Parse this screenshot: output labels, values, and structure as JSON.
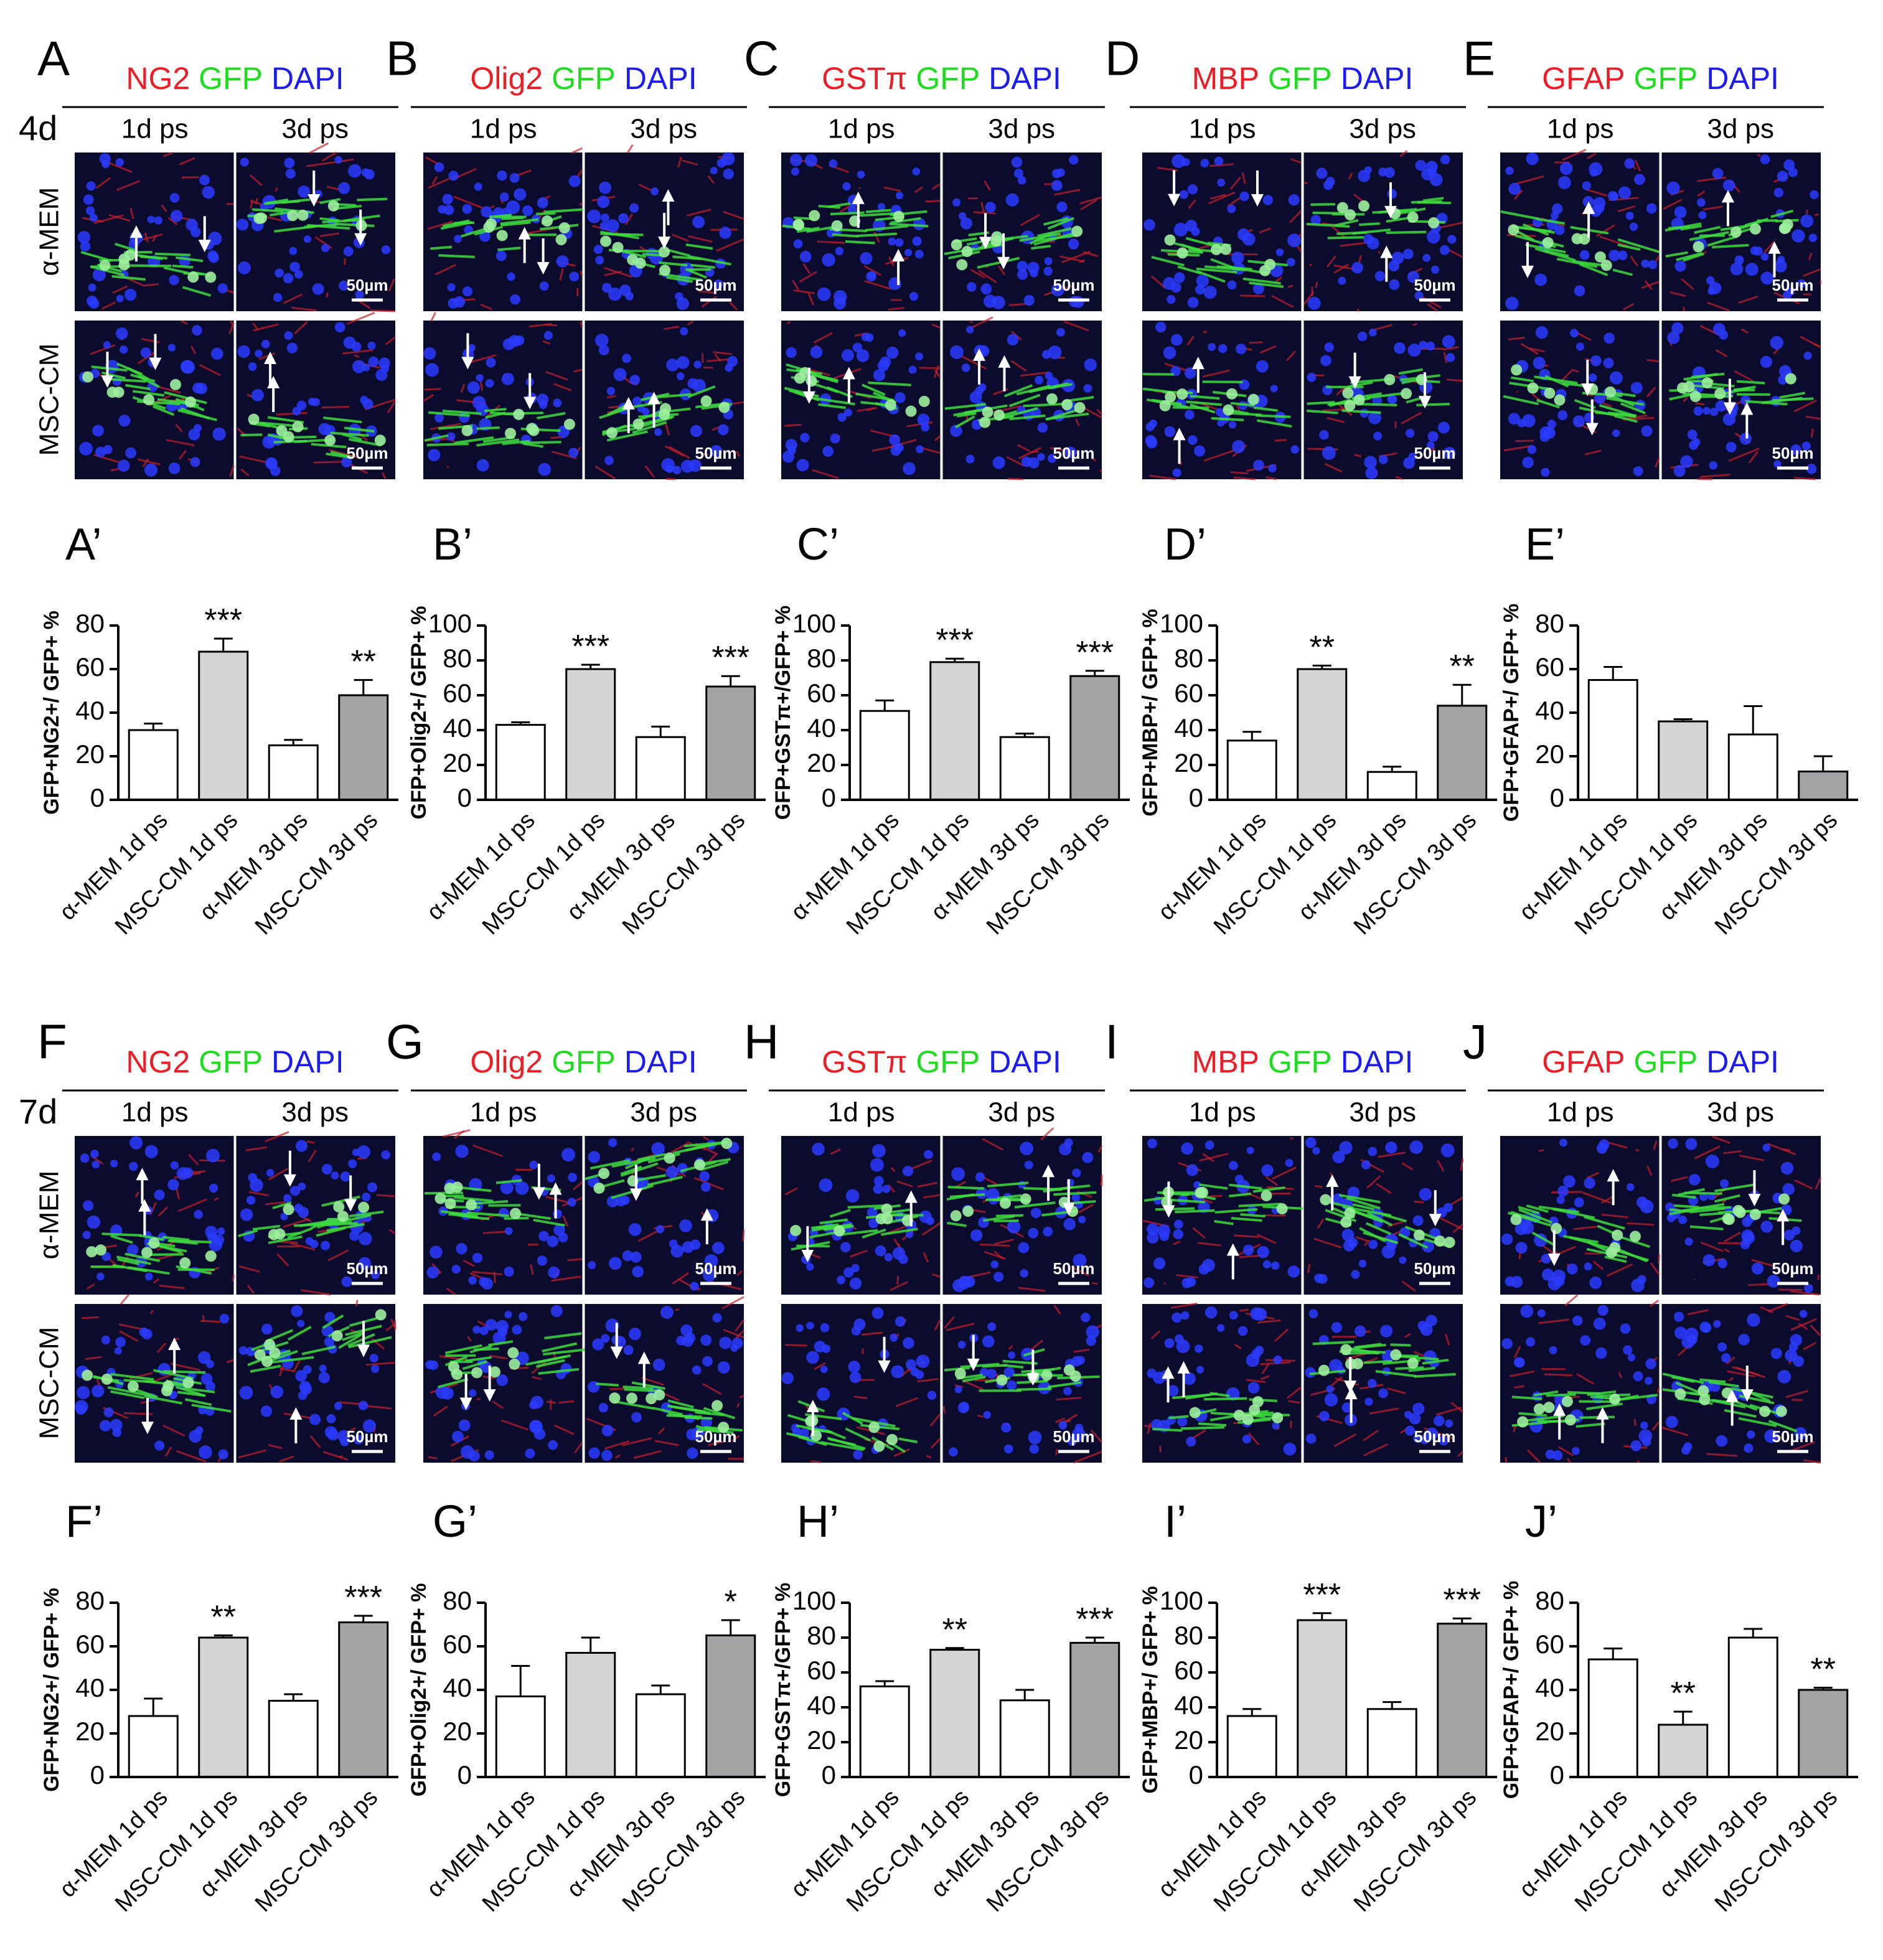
{
  "time_points": [
    "4d",
    "7d"
  ],
  "row_labels": [
    "α-MEM",
    "MSC-CM"
  ],
  "column_labels": [
    "1d ps",
    "3d ps"
  ],
  "scale_bar": "50µm",
  "image_panels": [
    {
      "letter": "A",
      "stains": [
        {
          "name": "NG2",
          "color": "#ee1c24"
        },
        {
          "name": "GFP",
          "color": "#1edc1e"
        },
        {
          "name": "DAPI",
          "color": "#1c1cf0"
        }
      ]
    },
    {
      "letter": "B",
      "stains": [
        {
          "name": "Olig2",
          "color": "#ee1c24"
        },
        {
          "name": "GFP",
          "color": "#1edc1e"
        },
        {
          "name": "DAPI",
          "color": "#1c1cf0"
        }
      ]
    },
    {
      "letter": "C",
      "stains": [
        {
          "name": "GSTπ",
          "color": "#ee1c24"
        },
        {
          "name": "GFP",
          "color": "#1edc1e"
        },
        {
          "name": "DAPI",
          "color": "#1c1cf0"
        }
      ]
    },
    {
      "letter": "D",
      "stains": [
        {
          "name": "MBP",
          "color": "#ee1c24"
        },
        {
          "name": "GFP",
          "color": "#1edc1e"
        },
        {
          "name": "DAPI",
          "color": "#1c1cf0"
        }
      ]
    },
    {
      "letter": "E",
      "stains": [
        {
          "name": "GFAP",
          "color": "#ee1c24"
        },
        {
          "name": "GFP",
          "color": "#1edc1e"
        },
        {
          "name": "DAPI",
          "color": "#1c1cf0"
        }
      ]
    },
    {
      "letter": "F",
      "stains": [
        {
          "name": "NG2",
          "color": "#ee1c24"
        },
        {
          "name": "GFP",
          "color": "#1edc1e"
        },
        {
          "name": "DAPI",
          "color": "#1c1cf0"
        }
      ]
    },
    {
      "letter": "G",
      "stains": [
        {
          "name": "Olig2",
          "color": "#ee1c24"
        },
        {
          "name": "GFP",
          "color": "#1edc1e"
        },
        {
          "name": "DAPI",
          "color": "#1c1cf0"
        }
      ]
    },
    {
      "letter": "H",
      "stains": [
        {
          "name": "GSTπ",
          "color": "#ee1c24"
        },
        {
          "name": "GFP",
          "color": "#1edc1e"
        },
        {
          "name": "DAPI",
          "color": "#1c1cf0"
        }
      ]
    },
    {
      "letter": "I",
      "stains": [
        {
          "name": "MBP",
          "color": "#ee1c24"
        },
        {
          "name": "GFP",
          "color": "#1edc1e"
        },
        {
          "name": "DAPI",
          "color": "#1c1cf0"
        }
      ]
    },
    {
      "letter": "J",
      "stains": [
        {
          "name": "GFAP",
          "color": "#ee1c24"
        },
        {
          "name": "GFP",
          "color": "#1edc1e"
        },
        {
          "name": "DAPI",
          "color": "#1c1cf0"
        }
      ]
    }
  ],
  "chart_data": [
    {
      "type": "bar",
      "title": "A’",
      "y_label": "GFP+NG2+/ GFP+ %",
      "categories": [
        "α-MEM 1d ps",
        "MSC-CM 1d ps",
        "α-MEM 3d ps",
        "MSC-CM 3d ps"
      ],
      "values": [
        32,
        68,
        25,
        48
      ],
      "errors": [
        3,
        6,
        2.5,
        7
      ],
      "colors": [
        "#ffffff",
        "#d4d4d4",
        "#ffffff",
        "#a3a3a5"
      ],
      "ylim": [
        0,
        80
      ],
      "yticks": [
        0,
        20,
        40,
        60,
        80
      ],
      "annotations": [
        {
          "category": "MSC-CM 1d ps",
          "text": "***"
        },
        {
          "category": "MSC-CM 3d ps",
          "text": "**"
        }
      ]
    },
    {
      "type": "bar",
      "title": "B’",
      "y_label": "GFP+Olig2+/ GFP+ %",
      "categories": [
        "α-MEM 1d ps",
        "MSC-CM 1d ps",
        "α-MEM 3d ps",
        "MSC-CM 3d ps"
      ],
      "values": [
        43,
        75,
        36,
        65
      ],
      "errors": [
        1.5,
        2.5,
        6,
        6
      ],
      "colors": [
        "#ffffff",
        "#d4d4d4",
        "#ffffff",
        "#a3a3a5"
      ],
      "ylim": [
        0,
        100
      ],
      "yticks": [
        0,
        20,
        40,
        60,
        80,
        100
      ],
      "annotations": [
        {
          "category": "MSC-CM 1d ps",
          "text": "***"
        },
        {
          "category": "MSC-CM 3d ps",
          "text": "***"
        }
      ]
    },
    {
      "type": "bar",
      "title": "C’",
      "y_label": "GFP+GSTπ+/GFP+ %",
      "categories": [
        "α-MEM 1d ps",
        "MSC-CM 1d ps",
        "α-MEM 3d ps",
        "MSC-CM 3d ps"
      ],
      "values": [
        51,
        79,
        36,
        71
      ],
      "errors": [
        6,
        2,
        2,
        3
      ],
      "colors": [
        "#ffffff",
        "#d4d4d4",
        "#ffffff",
        "#a3a3a5"
      ],
      "ylim": [
        0,
        100
      ],
      "yticks": [
        0,
        20,
        40,
        60,
        80,
        100
      ],
      "annotations": [
        {
          "category": "MSC-CM 1d ps",
          "text": "***"
        },
        {
          "category": "MSC-CM 3d ps",
          "text": "***"
        }
      ]
    },
    {
      "type": "bar",
      "title": "D’",
      "y_label": "GFP+MBP+/ GFP+ %",
      "categories": [
        "α-MEM 1d ps",
        "MSC-CM 1d ps",
        "α-MEM 3d ps",
        "MSC-CM 3d ps"
      ],
      "values": [
        34,
        75,
        16,
        54
      ],
      "errors": [
        5,
        2,
        3,
        12
      ],
      "colors": [
        "#ffffff",
        "#d4d4d4",
        "#ffffff",
        "#a3a3a5"
      ],
      "ylim": [
        0,
        100
      ],
      "yticks": [
        0,
        20,
        40,
        60,
        80,
        100
      ],
      "annotations": [
        {
          "category": "MSC-CM 1d ps",
          "text": "**"
        },
        {
          "category": "MSC-CM 3d ps",
          "text": "**"
        }
      ]
    },
    {
      "type": "bar",
      "title": "E’",
      "y_label": "GFP+GFAP+/ GFP+ %",
      "categories": [
        "α-MEM 1d ps",
        "MSC-CM 1d ps",
        "α-MEM 3d ps",
        "MSC-CM 3d ps"
      ],
      "values": [
        55,
        36,
        30,
        13
      ],
      "errors": [
        6,
        1,
        13,
        7
      ],
      "colors": [
        "#ffffff",
        "#d4d4d4",
        "#ffffff",
        "#a3a3a5"
      ],
      "ylim": [
        0,
        80
      ],
      "yticks": [
        0,
        20,
        40,
        60,
        80
      ],
      "annotations": []
    },
    {
      "type": "bar",
      "title": "F’",
      "y_label": "GFP+NG2+/ GFP+ %",
      "categories": [
        "α-MEM 1d ps",
        "MSC-CM 1d ps",
        "α-MEM 3d ps",
        "MSC-CM 3d ps"
      ],
      "values": [
        28,
        64,
        35,
        71
      ],
      "errors": [
        8,
        1,
        3,
        3
      ],
      "colors": [
        "#ffffff",
        "#d4d4d4",
        "#ffffff",
        "#a3a3a5"
      ],
      "ylim": [
        0,
        80
      ],
      "yticks": [
        0,
        20,
        40,
        60,
        80
      ],
      "annotations": [
        {
          "category": "MSC-CM 1d ps",
          "text": "**"
        },
        {
          "category": "MSC-CM 3d ps",
          "text": "***"
        }
      ]
    },
    {
      "type": "bar",
      "title": "G’",
      "y_label": "GFP+Olig2+/ GFP+ %",
      "categories": [
        "α-MEM 1d ps",
        "MSC-CM 1d ps",
        "α-MEM 3d ps",
        "MSC-CM 3d ps"
      ],
      "values": [
        37,
        57,
        38,
        65
      ],
      "errors": [
        14,
        7,
        4,
        7
      ],
      "colors": [
        "#ffffff",
        "#d4d4d4",
        "#ffffff",
        "#a3a3a5"
      ],
      "ylim": [
        0,
        80
      ],
      "yticks": [
        0,
        20,
        40,
        60,
        80
      ],
      "annotations": [
        {
          "category": "MSC-CM 3d ps",
          "text": "*"
        }
      ]
    },
    {
      "type": "bar",
      "title": "H’",
      "y_label": "GFP+GSTπ+/GFP+ %",
      "categories": [
        "α-MEM 1d ps",
        "MSC-CM 1d ps",
        "α-MEM 3d ps",
        "MSC-CM 3d ps"
      ],
      "values": [
        52,
        73,
        44,
        77
      ],
      "errors": [
        3,
        1,
        6,
        3
      ],
      "colors": [
        "#ffffff",
        "#d4d4d4",
        "#ffffff",
        "#a3a3a5"
      ],
      "ylim": [
        0,
        100
      ],
      "yticks": [
        0,
        20,
        40,
        60,
        80,
        100
      ],
      "annotations": [
        {
          "category": "MSC-CM 1d ps",
          "text": "**"
        },
        {
          "category": "MSC-CM 3d ps",
          "text": "***"
        }
      ]
    },
    {
      "type": "bar",
      "title": "I’",
      "y_label": "GFP+MBP+/ GFP+ %",
      "categories": [
        "α-MEM 1d ps",
        "MSC-CM 1d ps",
        "α-MEM 3d ps",
        "MSC-CM 3d ps"
      ],
      "values": [
        35,
        90,
        39,
        88
      ],
      "errors": [
        4,
        4,
        4,
        3
      ],
      "colors": [
        "#ffffff",
        "#d4d4d4",
        "#ffffff",
        "#a3a3a5"
      ],
      "ylim": [
        0,
        100
      ],
      "yticks": [
        0,
        20,
        40,
        60,
        80,
        100
      ],
      "annotations": [
        {
          "category": "MSC-CM 1d ps",
          "text": "***"
        },
        {
          "category": "MSC-CM 3d ps",
          "text": "***"
        }
      ]
    },
    {
      "type": "bar",
      "title": "J’",
      "y_label": "GFP+GFAP+/ GFP+ %",
      "categories": [
        "α-MEM 1d ps",
        "MSC-CM 1d ps",
        "α-MEM 3d ps",
        "MSC-CM 3d ps"
      ],
      "values": [
        54,
        24,
        64,
        40
      ],
      "errors": [
        5,
        6,
        4,
        1
      ],
      "colors": [
        "#ffffff",
        "#d4d4d4",
        "#ffffff",
        "#a3a3a5"
      ],
      "ylim": [
        0,
        80
      ],
      "yticks": [
        0,
        20,
        40,
        60,
        80
      ],
      "annotations": [
        {
          "category": "MSC-CM 1d ps",
          "text": "**"
        },
        {
          "category": "MSC-CM 3d ps",
          "text": "**"
        }
      ]
    }
  ]
}
